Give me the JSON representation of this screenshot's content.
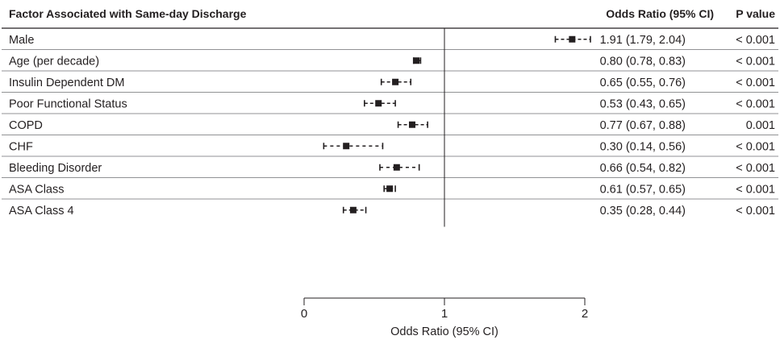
{
  "header": {
    "factor": "Factor Associated with Same-day Discharge",
    "or_ci": "Odds Ratio (95% CI)",
    "p_value": "P value"
  },
  "chart_data": {
    "type": "forest",
    "xlabel": "Odds Ratio (95% CI)",
    "xlim": [
      0,
      2
    ],
    "xticks": [
      0,
      1,
      2
    ],
    "reference_line": 1,
    "rows": [
      {
        "label": "Male",
        "or": 1.91,
        "lo": 1.79,
        "hi": 2.04,
        "ci_text": "1.91 (1.79, 2.04)",
        "p": "< 0.001",
        "dashed": false
      },
      {
        "label": "Age (per decade)",
        "or": 0.8,
        "lo": 0.78,
        "hi": 0.83,
        "ci_text": "0.80 (0.78, 0.83)",
        "p": "< 0.001",
        "dashed": false
      },
      {
        "label": "Insulin Dependent DM",
        "or": 0.65,
        "lo": 0.55,
        "hi": 0.76,
        "ci_text": "0.65 (0.55, 0.76)",
        "p": "< 0.001",
        "dashed": false
      },
      {
        "label": "Poor Functional Status",
        "or": 0.53,
        "lo": 0.43,
        "hi": 0.65,
        "ci_text": "0.53 (0.43, 0.65)",
        "p": "< 0.001",
        "dashed": false
      },
      {
        "label": "COPD",
        "or": 0.77,
        "lo": 0.67,
        "hi": 0.88,
        "ci_text": "0.77 (0.67, 0.88)",
        "p": "0.001",
        "dashed": false
      },
      {
        "label": "CHF",
        "or": 0.3,
        "lo": 0.14,
        "hi": 0.56,
        "ci_text": "0.30 (0.14, 0.56)",
        "p": "< 0.001",
        "dashed": true
      },
      {
        "label": "Bleeding Disorder",
        "or": 0.66,
        "lo": 0.54,
        "hi": 0.82,
        "ci_text": "0.66 (0.54, 0.82)",
        "p": "< 0.001",
        "dashed": true
      },
      {
        "label": "ASA Class",
        "or": 0.61,
        "lo": 0.57,
        "hi": 0.65,
        "ci_text": "0.61 (0.57, 0.65)",
        "p": "< 0.001",
        "dashed": false
      },
      {
        "label": "ASA Class 4",
        "or": 0.35,
        "lo": 0.28,
        "hi": 0.44,
        "ci_text": "0.35 (0.28, 0.44)",
        "p": "< 0.001",
        "dashed": false
      }
    ]
  }
}
